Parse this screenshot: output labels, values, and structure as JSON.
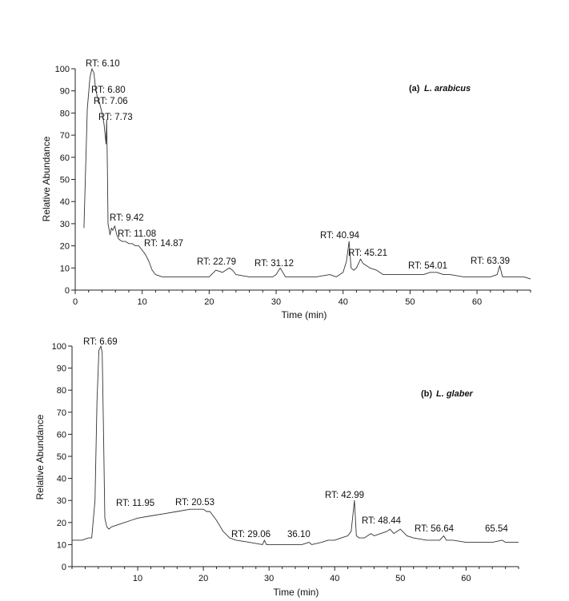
{
  "chart_data": [
    {
      "type": "line",
      "title_prefix": "(a)",
      "title": "L. arabicus",
      "xlabel": "Time (min)",
      "ylabel": "Relative Abundance",
      "xlim": [
        0,
        68
      ],
      "ylim": [
        0,
        100
      ],
      "x_ticks": [
        0,
        10,
        20,
        30,
        40,
        50,
        60
      ],
      "y_ticks": [
        0,
        10,
        20,
        30,
        40,
        50,
        60,
        70,
        80,
        90,
        100
      ],
      "peak_labels": [
        "RT: 6.10",
        "RT: 6.80",
        "RT: 7.06",
        "RT: 7.73",
        "RT: 9.42",
        "RT: 11.08",
        "RT: 14.87",
        "RT: 22.79",
        "RT: 31.12",
        "RT: 40.94",
        "RT: 45.21",
        "RT: 54.01",
        "RT: 63.39"
      ],
      "x": [
        1.3,
        1.8,
        2.2,
        2.5,
        2.8,
        3.0,
        3.3,
        3.6,
        4.0,
        4.3,
        4.6,
        4.7,
        4.8,
        4.9,
        5.2,
        5.4,
        5.6,
        5.9,
        6.2,
        6.5,
        7.0,
        7.5,
        8.0,
        8.5,
        9.0,
        9.5,
        10.0,
        10.5,
        11.0,
        11.5,
        12.0,
        13.0,
        15.0,
        17.0,
        19.0,
        20.0,
        21.0,
        22.0,
        23.0,
        23.5,
        24.0,
        26.0,
        28.0,
        29.5,
        30.0,
        30.6,
        31.0,
        31.4,
        32.0,
        34.0,
        36.0,
        38.0,
        39.0,
        40.0,
        40.5,
        40.9,
        41.2,
        41.6,
        42.0,
        42.6,
        43.0,
        43.5,
        44.0,
        45.0,
        46.0,
        48.0,
        50.0,
        52.0,
        53.0,
        54.0,
        55.0,
        56.0,
        58.0,
        60.0,
        62.0,
        63.0,
        63.4,
        63.8,
        65.0,
        66.0,
        67.0,
        68.0
      ],
      "y": [
        28,
        82,
        96,
        100,
        98,
        92,
        87,
        85,
        80,
        75,
        66,
        77,
        55,
        30,
        25,
        28,
        27,
        29,
        25,
        23,
        22,
        22,
        21,
        21,
        20,
        20,
        18,
        16,
        13,
        9,
        7,
        6,
        6,
        6,
        6,
        6,
        9,
        8,
        10,
        9,
        7,
        6,
        6,
        6,
        7,
        10,
        8,
        6,
        6,
        6,
        6,
        7,
        6,
        8,
        13,
        22,
        10,
        9,
        10,
        14,
        12,
        11,
        10,
        9,
        7,
        7,
        7,
        7,
        8,
        8,
        7,
        7,
        6,
        6,
        6,
        7,
        11,
        6,
        6,
        6,
        6,
        5
      ]
    },
    {
      "type": "line",
      "title_prefix": "(b)",
      "title": "L. glaber",
      "xlabel": "Time (min)",
      "ylabel": "Relative Abundance",
      "xlim": [
        0,
        68
      ],
      "ylim": [
        0,
        100
      ],
      "x_ticks": [
        10,
        20,
        30,
        40,
        50,
        60
      ],
      "y_ticks": [
        0,
        10,
        20,
        30,
        40,
        50,
        60,
        70,
        80,
        90,
        100
      ],
      "peak_labels": [
        "RT: 6.69",
        "RT: 11.95",
        "RT: 20.53",
        "RT: 29.06",
        "36.10",
        "RT: 42.99",
        "RT: 48.44",
        "RT: 56.64",
        "65.54"
      ],
      "x": [
        0.0,
        1.5,
        2.5,
        3.0,
        3.5,
        3.8,
        4.1,
        4.4,
        4.6,
        4.8,
        5.0,
        5.3,
        5.6,
        6.0,
        7.0,
        8.0,
        9.0,
        10.0,
        12.0,
        14.0,
        16.0,
        18.0,
        19.0,
        20.0,
        20.5,
        21.0,
        22.0,
        23.0,
        24.0,
        25.0,
        27.0,
        29.0,
        29.3,
        29.6,
        31.0,
        33.0,
        35.0,
        36.1,
        36.5,
        38.0,
        39.0,
        40.0,
        41.0,
        42.0,
        42.5,
        43.0,
        43.3,
        43.7,
        44.5,
        45.5,
        46.0,
        47.0,
        48.0,
        48.4,
        49.0,
        50.0,
        51.0,
        52.0,
        54.0,
        56.0,
        56.6,
        57.0,
        58.0,
        60.0,
        62.0,
        64.0,
        65.5,
        66.0,
        68.0
      ],
      "y": [
        12,
        12,
        13,
        13,
        30,
        75,
        98,
        100,
        97,
        60,
        22,
        18,
        17,
        18,
        19,
        20,
        21,
        22,
        23,
        24,
        25,
        26,
        26,
        26,
        25,
        25,
        21,
        16,
        13,
        12,
        11,
        10,
        12,
        10,
        10,
        10,
        10,
        11,
        10,
        11,
        12,
        12,
        13,
        14,
        16,
        30,
        14,
        13,
        13,
        15,
        14,
        15,
        16,
        17,
        15,
        17,
        14,
        13,
        12,
        12,
        14,
        12,
        12,
        11,
        11,
        11,
        12,
        11,
        11
      ]
    }
  ]
}
